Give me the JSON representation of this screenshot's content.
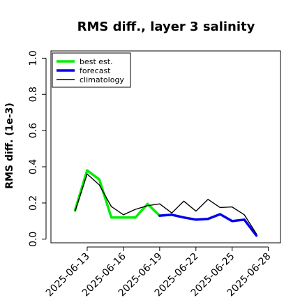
{
  "chart_data": {
    "type": "line",
    "title": "RMS diff., layer 3 salinity",
    "xlabel": "",
    "ylabel": "RMS diff. (1e-3)",
    "ylim": [
      -0.02,
      1.04
    ],
    "yticks": [
      0.0,
      0.2,
      0.4,
      0.6,
      0.8,
      1.0
    ],
    "ytick_labels": [
      "0.0",
      "0.2",
      "0.4",
      "0.6",
      "0.8",
      "1.0"
    ],
    "xticks": [
      "2025-06-13",
      "2025-06-16",
      "2025-06-19",
      "2025-06-22",
      "2025-06-25",
      "2025-06-28"
    ],
    "highlight_tick": "2025-06-19",
    "x_range": [
      "2025-06-10",
      "2025-06-29"
    ],
    "legend_position": "top-left",
    "grid": false,
    "series": [
      {
        "name": "best est.",
        "color": "#00ee00",
        "x": [
          "2025-06-12",
          "2025-06-13",
          "2025-06-14",
          "2025-06-15",
          "2025-06-16",
          "2025-06-17",
          "2025-06-18",
          "2025-06-19"
        ],
        "values": [
          0.16,
          0.38,
          0.33,
          0.12,
          0.12,
          0.12,
          0.195,
          0.13
        ]
      },
      {
        "name": "forecast",
        "color": "#0000ee",
        "x": [
          "2025-06-19",
          "2025-06-20",
          "2025-06-21",
          "2025-06-22",
          "2025-06-23",
          "2025-06-24",
          "2025-06-25",
          "2025-06-26",
          "2025-06-27"
        ],
        "values": [
          0.13,
          0.135,
          0.12,
          0.108,
          0.112,
          0.138,
          0.1,
          0.108,
          0.02
        ]
      },
      {
        "name": "climatology",
        "color": "#000000",
        "x": [
          "2025-06-12",
          "2025-06-13",
          "2025-06-14",
          "2025-06-15",
          "2025-06-16",
          "2025-06-17",
          "2025-06-18",
          "2025-06-19",
          "2025-06-20",
          "2025-06-21",
          "2025-06-22",
          "2025-06-23",
          "2025-06-24",
          "2025-06-25",
          "2025-06-26",
          "2025-06-27"
        ],
        "values": [
          0.155,
          0.36,
          0.3,
          0.18,
          0.135,
          0.165,
          0.185,
          0.195,
          0.145,
          0.21,
          0.155,
          0.22,
          0.175,
          0.178,
          0.135,
          0.03
        ]
      }
    ]
  }
}
